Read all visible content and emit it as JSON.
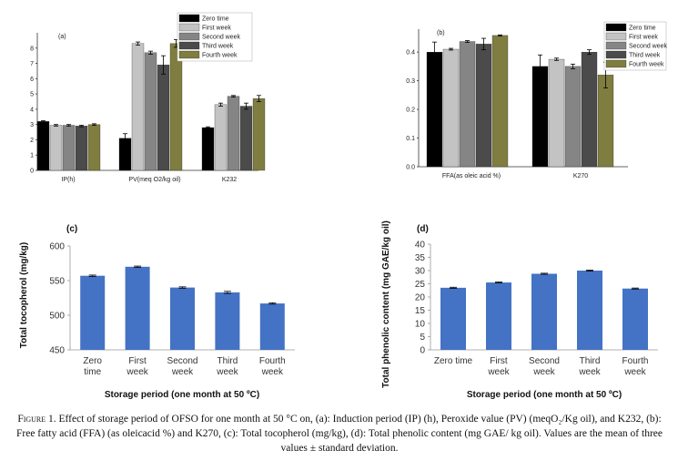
{
  "colors": {
    "zero": "#000000",
    "first": "#c3c3c3",
    "second": "#858585",
    "third": "#4b4b4b",
    "fourth": "#7f7d3f",
    "blue_bar": "#4472c4"
  },
  "chart_data": [
    {
      "type": "bar",
      "panel": "(a)",
      "categories": [
        "IP(h)",
        "PV(meq O2/kg oil)",
        "K232"
      ],
      "series": [
        {
          "name": "Zero time",
          "values": [
            3.2,
            2.1,
            2.8
          ],
          "errors": [
            0.05,
            0.3,
            0.05
          ]
        },
        {
          "name": "First week",
          "values": [
            2.95,
            8.3,
            4.3
          ],
          "errors": [
            0.05,
            0.1,
            0.1
          ]
        },
        {
          "name": "Second week",
          "values": [
            2.95,
            7.7,
            4.85
          ],
          "errors": [
            0.05,
            0.1,
            0.05
          ]
        },
        {
          "name": "Third week",
          "values": [
            2.9,
            6.9,
            4.2
          ],
          "errors": [
            0.05,
            0.6,
            0.2
          ]
        },
        {
          "name": "Fourth week",
          "values": [
            3.0,
            8.3,
            4.7
          ],
          "errors": [
            0.05,
            0.25,
            0.2
          ]
        }
      ],
      "ylim": [
        0,
        9
      ],
      "yticks": [
        "0",
        "1",
        "2",
        "3",
        "4",
        "5",
        "6",
        "7",
        "8"
      ],
      "legend": "top-right"
    },
    {
      "type": "bar",
      "panel": "(b)",
      "categories": [
        "FFA(as oleic acid %)",
        "K270"
      ],
      "series": [
        {
          "name": "Zero time",
          "values": [
            0.4,
            0.35
          ],
          "errors": [
            0.035,
            0.04
          ]
        },
        {
          "name": "First week",
          "values": [
            0.41,
            0.375
          ],
          "errors": [
            0.003,
            0.004
          ]
        },
        {
          "name": "Second week",
          "values": [
            0.437,
            0.35
          ],
          "errors": [
            0.003,
            0.008
          ]
        },
        {
          "name": "Third week",
          "values": [
            0.428,
            0.4
          ],
          "errors": [
            0.02,
            0.008
          ]
        },
        {
          "name": "Fourth week",
          "values": [
            0.458,
            0.32
          ],
          "errors": [
            0.002,
            0.045
          ]
        }
      ],
      "ylim": [
        0,
        0.48
      ],
      "yticks": [
        "0.0",
        "0.1",
        "0.2",
        "0.3",
        "0.4"
      ],
      "legend": "top-right"
    },
    {
      "type": "bar",
      "panel": "(c)",
      "categories": [
        "Zero time",
        "First week",
        "Second week",
        "Third week",
        "Fourth week"
      ],
      "values": [
        557,
        570,
        540,
        533,
        517
      ],
      "errors": [
        1,
        1,
        1,
        1.5,
        1
      ],
      "ylim": [
        450,
        600
      ],
      "yticks": [
        "450",
        "500",
        "550",
        "600"
      ],
      "ylabel": "Total tocopherol (mg/kg)",
      "xlabel": "Storage period (one month at 50 ºC)",
      "grid": false
    },
    {
      "type": "bar",
      "panel": "(d)",
      "categories": [
        "Zero time",
        "First week",
        "Second week",
        "Third week",
        "Fourth week"
      ],
      "values": [
        23.5,
        25.5,
        28.8,
        30.0,
        23.2
      ],
      "errors": [
        0.2,
        0.2,
        0.2,
        0.2,
        0.2
      ],
      "ylim": [
        0,
        40
      ],
      "yticks": [
        "0",
        "5",
        "10",
        "15",
        "20",
        "25",
        "30",
        "35",
        "40"
      ],
      "ylabel": "Total phenolic content (mg GAE/kg oil)",
      "xlabel": "Storage period (one month at 50 ºC)",
      "grid": false
    }
  ],
  "caption": {
    "figure_label": "Figure 1.",
    "text": " Effect of storage period of OFSO for one month at 50 °C on, (a): Induction period (IP) (h), Peroxide value (PV) (meqO₂/Kg oil), and K232, (b):  Free fatty acid (FFA) (as oleicacid %) and K270, (c): Total tocopherol (mg/kg), (d): Total phenolic content (mg GAE/ kg oil). Values are the mean of three values ± standard deviation."
  }
}
